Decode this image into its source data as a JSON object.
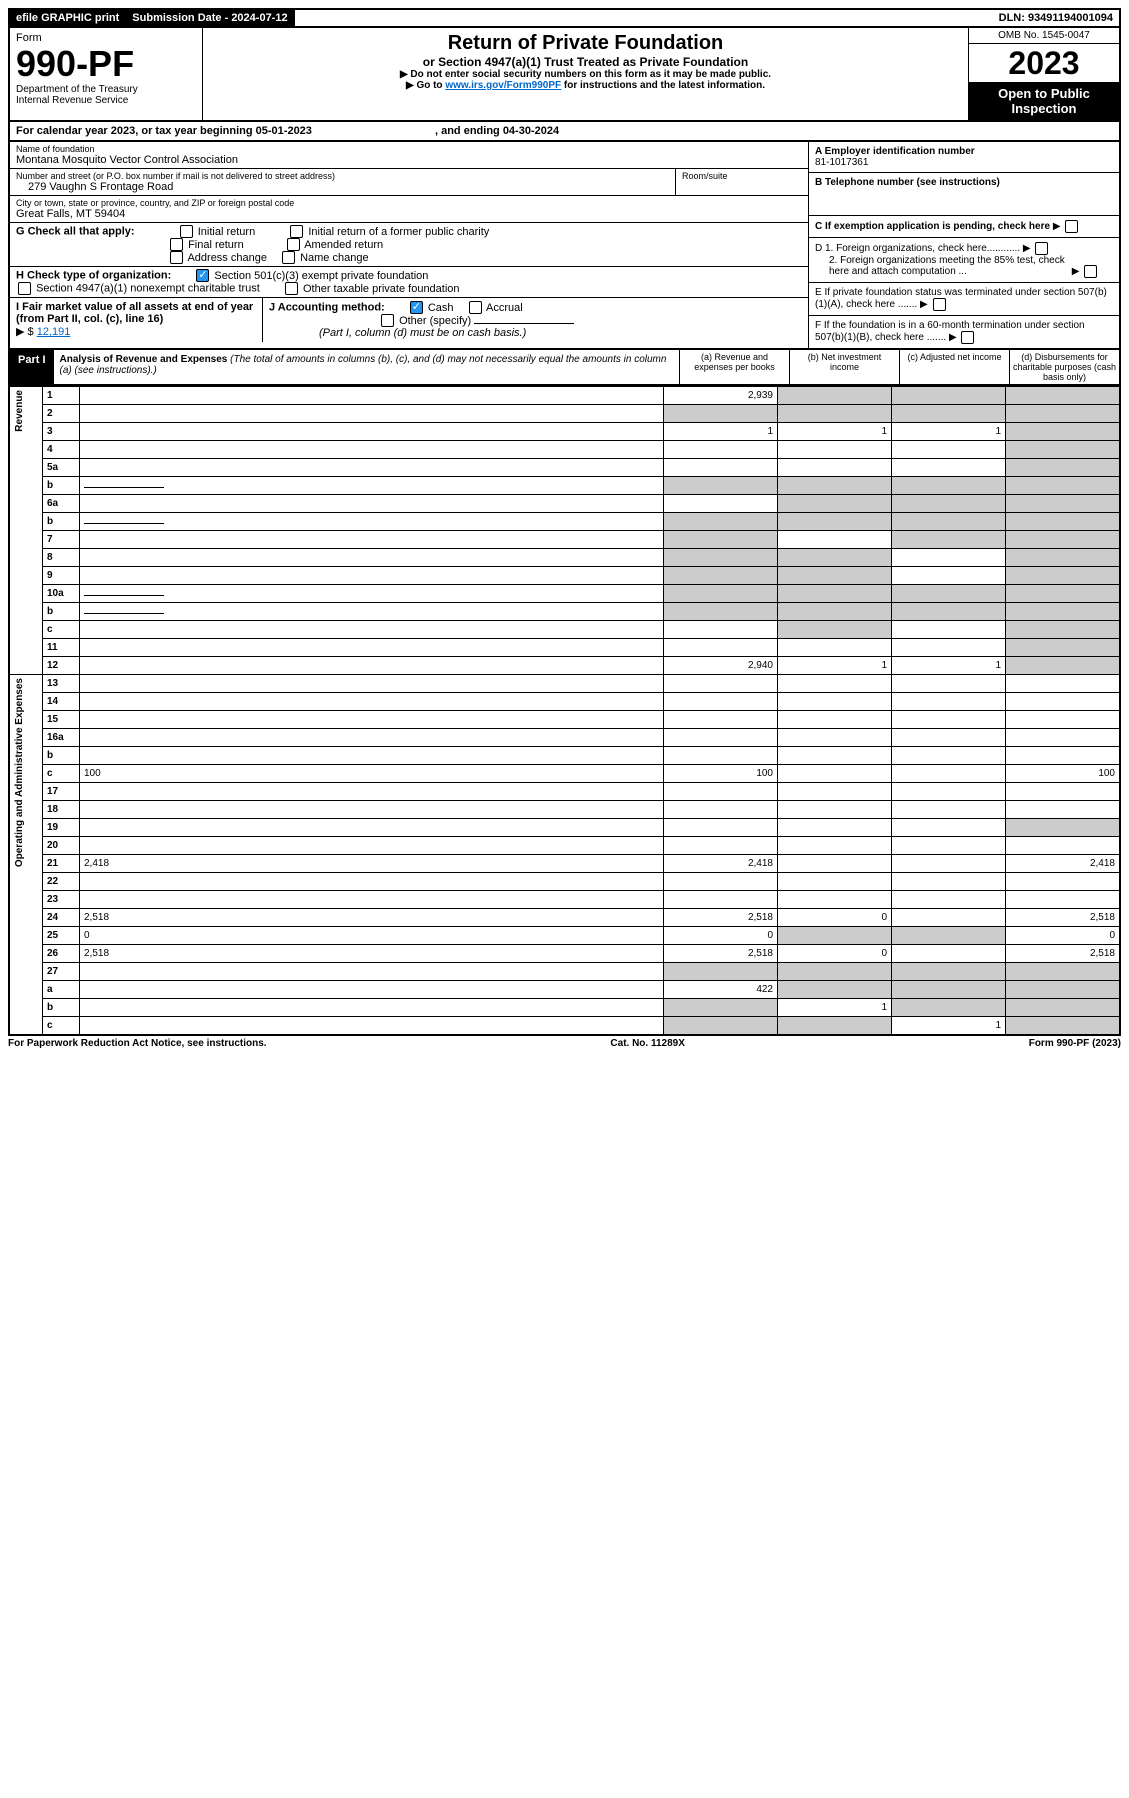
{
  "topbar": {
    "efile": "efile GRAPHIC print",
    "submission": "Submission Date - 2024-07-12",
    "dln": "DLN: 93491194001094"
  },
  "header": {
    "form_label": "Form",
    "form_number": "990-PF",
    "dept1": "Department of the Treasury",
    "dept2": "Internal Revenue Service",
    "title": "Return of Private Foundation",
    "subtitle": "or Section 4947(a)(1) Trust Treated as Private Foundation",
    "instr1": "▶ Do not enter social security numbers on this form as it may be made public.",
    "instr2_pre": "▶ Go to ",
    "instr2_link": "www.irs.gov/Form990PF",
    "instr2_post": " for instructions and the latest information.",
    "omb": "OMB No. 1545-0047",
    "year": "2023",
    "open": "Open to Public Inspection"
  },
  "cal_year": {
    "text": "For calendar year 2023, or tax year beginning 05-01-2023",
    "ending": ", and ending 04-30-2024"
  },
  "entity": {
    "name_label": "Name of foundation",
    "name": "Montana Mosquito Vector Control Association",
    "addr_label": "Number and street (or P.O. box number if mail is not delivered to street address)",
    "room_label": "Room/suite",
    "addr": "279 Vaughn S Frontage Road",
    "city_label": "City or town, state or province, country, and ZIP or foreign postal code",
    "city": "Great Falls, MT  59404",
    "a_label": "A Employer identification number",
    "ein": "81-1017361",
    "b_label": "B Telephone number (see instructions)",
    "c_label": "C If exemption application is pending, check here",
    "d1": "D 1. Foreign organizations, check here............",
    "d2": "2. Foreign organizations meeting the 85% test, check here and attach computation ...",
    "e": "E   If private foundation status was terminated under section 507(b)(1)(A), check here .......",
    "f": "F   If the foundation is in a 60-month termination under section 507(b)(1)(B), check here ......."
  },
  "g": {
    "label": "G Check all that apply:",
    "opts": [
      "Initial return",
      "Initial return of a former public charity",
      "Final return",
      "Amended return",
      "Address change",
      "Name change"
    ]
  },
  "h": {
    "label": "H Check type of organization:",
    "opt1": "Section 501(c)(3) exempt private foundation",
    "opt2": "Section 4947(a)(1) nonexempt charitable trust",
    "opt3": "Other taxable private foundation"
  },
  "i": {
    "label": "I Fair market value of all assets at end of year (from Part II, col. (c), line 16)",
    "value": "12,191"
  },
  "j": {
    "label": "J Accounting method:",
    "cash": "Cash",
    "accrual": "Accrual",
    "other": "Other (specify)",
    "note": "(Part I, column (d) must be on cash basis.)"
  },
  "part1": {
    "label": "Part I",
    "title": "Analysis of Revenue and Expenses",
    "desc": " (The total of amounts in columns (b), (c), and (d) may not necessarily equal the amounts in column (a) (see instructions).)",
    "col_a": "(a)   Revenue and expenses per books",
    "col_b": "(b)   Net investment income",
    "col_c": "(c)   Adjusted net income",
    "col_d": "(d)   Disbursements for charitable purposes (cash basis only)"
  },
  "side": {
    "revenue": "Revenue",
    "expenses": "Operating and Administrative Expenses"
  },
  "lines": [
    {
      "n": "1",
      "d": "",
      "a": "2,939",
      "b": "",
      "c": "",
      "sb": true,
      "sc": true,
      "sd": true
    },
    {
      "n": "2",
      "d": "",
      "a": "",
      "b": "",
      "c": "",
      "sa": true,
      "sb": true,
      "sc": true,
      "sd": true,
      "chk": true
    },
    {
      "n": "3",
      "d": "",
      "a": "1",
      "b": "1",
      "c": "1",
      "sd": true
    },
    {
      "n": "4",
      "d": "",
      "a": "",
      "b": "",
      "c": "",
      "sd": true
    },
    {
      "n": "5a",
      "d": "",
      "a": "",
      "b": "",
      "c": "",
      "sd": true
    },
    {
      "n": "b",
      "d": "",
      "a": "",
      "b": "",
      "c": "",
      "sa": true,
      "sb": true,
      "sc": true,
      "sd": true,
      "inline": true
    },
    {
      "n": "6a",
      "d": "",
      "a": "",
      "b": "",
      "c": "",
      "sb": true,
      "sc": true,
      "sd": true
    },
    {
      "n": "b",
      "d": "",
      "a": "",
      "b": "",
      "c": "",
      "sa": true,
      "sb": true,
      "sc": true,
      "sd": true,
      "inline": true
    },
    {
      "n": "7",
      "d": "",
      "a": "",
      "b": "",
      "c": "",
      "sa": true,
      "sc": true,
      "sd": true
    },
    {
      "n": "8",
      "d": "",
      "a": "",
      "b": "",
      "c": "",
      "sa": true,
      "sb": true,
      "sd": true
    },
    {
      "n": "9",
      "d": "",
      "a": "",
      "b": "",
      "c": "",
      "sa": true,
      "sb": true,
      "sd": true
    },
    {
      "n": "10a",
      "d": "",
      "a": "",
      "b": "",
      "c": "",
      "sa": true,
      "sb": true,
      "sc": true,
      "sd": true,
      "inline": true
    },
    {
      "n": "b",
      "d": "",
      "a": "",
      "b": "",
      "c": "",
      "sa": true,
      "sb": true,
      "sc": true,
      "sd": true,
      "inline": true
    },
    {
      "n": "c",
      "d": "",
      "a": "",
      "b": "",
      "c": "",
      "sb": true,
      "sd": true
    },
    {
      "n": "11",
      "d": "",
      "a": "",
      "b": "",
      "c": "",
      "sd": true
    },
    {
      "n": "12",
      "d": "",
      "a": "2,940",
      "b": "1",
      "c": "1",
      "sd": true
    }
  ],
  "exp_lines": [
    {
      "n": "13",
      "d": "",
      "a": "",
      "b": "",
      "c": ""
    },
    {
      "n": "14",
      "d": "",
      "a": "",
      "b": "",
      "c": ""
    },
    {
      "n": "15",
      "d": "",
      "a": "",
      "b": "",
      "c": ""
    },
    {
      "n": "16a",
      "d": "",
      "a": "",
      "b": "",
      "c": ""
    },
    {
      "n": "b",
      "d": "",
      "a": "",
      "b": "",
      "c": ""
    },
    {
      "n": "c",
      "d": "100",
      "a": "100",
      "b": "",
      "c": ""
    },
    {
      "n": "17",
      "d": "",
      "a": "",
      "b": "",
      "c": ""
    },
    {
      "n": "18",
      "d": "",
      "a": "",
      "b": "",
      "c": ""
    },
    {
      "n": "19",
      "d": "",
      "a": "",
      "b": "",
      "c": "",
      "sd": true
    },
    {
      "n": "20",
      "d": "",
      "a": "",
      "b": "",
      "c": ""
    },
    {
      "n": "21",
      "d": "2,418",
      "a": "2,418",
      "b": "",
      "c": ""
    },
    {
      "n": "22",
      "d": "",
      "a": "",
      "b": "",
      "c": ""
    },
    {
      "n": "23",
      "d": "",
      "a": "",
      "b": "",
      "c": ""
    },
    {
      "n": "24",
      "d": "2,518",
      "a": "2,518",
      "b": "0",
      "c": ""
    },
    {
      "n": "25",
      "d": "0",
      "a": "0",
      "b": "",
      "c": "",
      "sb": true,
      "sc": true
    },
    {
      "n": "26",
      "d": "2,518",
      "a": "2,518",
      "b": "0",
      "c": ""
    },
    {
      "n": "27",
      "d": "",
      "a": "",
      "b": "",
      "c": "",
      "sa": true,
      "sb": true,
      "sc": true,
      "sd": true
    },
    {
      "n": "a",
      "d": "",
      "a": "422",
      "b": "",
      "c": "",
      "sb": true,
      "sc": true,
      "sd": true
    },
    {
      "n": "b",
      "d": "",
      "a": "",
      "b": "1",
      "c": "",
      "sa": true,
      "sc": true,
      "sd": true
    },
    {
      "n": "c",
      "d": "",
      "a": "",
      "b": "",
      "c": "1",
      "sa": true,
      "sb": true,
      "sd": true
    }
  ],
  "footer": {
    "left": "For Paperwork Reduction Act Notice, see instructions.",
    "center": "Cat. No. 11289X",
    "right": "Form 990-PF (2023)"
  }
}
